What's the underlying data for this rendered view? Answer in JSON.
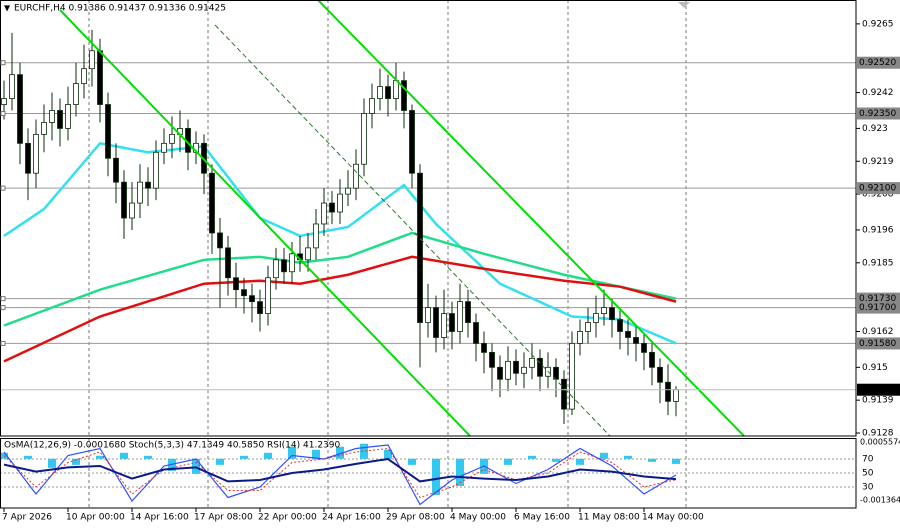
{
  "chart_data": [
    {
      "type": "candlestick",
      "title": "EURCHF,H4  0.91386 0.91437 0.91336 0.91425",
      "up_color": "#ffffff",
      "down_color": "#000000",
      "wick_color": "#0b2b0b",
      "open": [
        0.9238,
        0.924,
        0.9248,
        0.9225,
        0.9215,
        0.9228,
        0.9232,
        0.9236,
        0.923,
        0.9238,
        0.9245,
        0.925,
        0.9256,
        0.9238,
        0.922,
        0.9212,
        0.92,
        0.9205,
        0.9212,
        0.921,
        0.9222,
        0.9225,
        0.9228,
        0.923,
        0.9222,
        0.9225,
        0.9215,
        0.9195,
        0.919,
        0.918,
        0.9176,
        0.9174,
        0.9172,
        0.9168,
        0.918,
        0.9186,
        0.9182,
        0.9188,
        0.9186,
        0.919,
        0.9198,
        0.9205,
        0.9202,
        0.9208,
        0.921,
        0.9218,
        0.9235,
        0.924,
        0.9244,
        0.924,
        0.9246,
        0.9236,
        0.9215,
        0.9165,
        0.917,
        0.916,
        0.9168,
        0.9162,
        0.9172,
        0.9165,
        0.9158,
        0.9155,
        0.915,
        0.9146,
        0.9152,
        0.9148,
        0.915,
        0.9153,
        0.9147,
        0.915,
        0.9146,
        0.9136,
        0.9158,
        0.9162,
        0.9165,
        0.9168,
        0.917,
        0.9166,
        0.9162,
        0.916,
        0.9158,
        0.9155,
        0.915,
        0.9145,
        0.91386
      ],
      "high": [
        0.9246,
        0.9262,
        0.9252,
        0.923,
        0.9233,
        0.9238,
        0.9242,
        0.924,
        0.9244,
        0.9252,
        0.9258,
        0.9263,
        0.926,
        0.9242,
        0.9225,
        0.9216,
        0.9212,
        0.9218,
        0.9217,
        0.9226,
        0.923,
        0.9234,
        0.9236,
        0.9233,
        0.9229,
        0.9228,
        0.9218,
        0.92,
        0.9194,
        0.9185,
        0.918,
        0.9178,
        0.9176,
        0.9184,
        0.919,
        0.919,
        0.9192,
        0.9194,
        0.9195,
        0.9203,
        0.921,
        0.9209,
        0.9213,
        0.9216,
        0.9223,
        0.924,
        0.9245,
        0.925,
        0.9248,
        0.9252,
        0.9249,
        0.9238,
        0.9218,
        0.9178,
        0.9174,
        0.9176,
        0.9172,
        0.9178,
        0.9176,
        0.9168,
        0.9162,
        0.9158,
        0.9154,
        0.9157,
        0.9156,
        0.9155,
        0.9158,
        0.9156,
        0.9155,
        0.9153,
        0.9149,
        0.9162,
        0.9166,
        0.917,
        0.9174,
        0.9176,
        0.9173,
        0.9169,
        0.9166,
        0.9164,
        0.9161,
        0.9158,
        0.9153,
        0.9151,
        0.91437
      ],
      "low": [
        0.9233,
        0.9236,
        0.9218,
        0.9206,
        0.921,
        0.9222,
        0.9226,
        0.9224,
        0.9226,
        0.9234,
        0.924,
        0.9244,
        0.9232,
        0.9214,
        0.9205,
        0.9193,
        0.9196,
        0.92,
        0.9204,
        0.9206,
        0.9218,
        0.922,
        0.9222,
        0.9216,
        0.9218,
        0.9208,
        0.9188,
        0.917,
        0.9174,
        0.917,
        0.9168,
        0.9165,
        0.9162,
        0.9164,
        0.9176,
        0.9178,
        0.9178,
        0.9182,
        0.9182,
        0.9186,
        0.9194,
        0.9198,
        0.9198,
        0.9204,
        0.9206,
        0.9214,
        0.923,
        0.9236,
        0.9234,
        0.9236,
        0.923,
        0.921,
        0.915,
        0.916,
        0.9155,
        0.9156,
        0.9156,
        0.9158,
        0.916,
        0.9152,
        0.9148,
        0.9142,
        0.914,
        0.9142,
        0.9144,
        0.9143,
        0.9146,
        0.9142,
        0.9143,
        0.914,
        0.9131,
        0.9134,
        0.9154,
        0.9158,
        0.916,
        0.9164,
        0.916,
        0.9156,
        0.9154,
        0.9152,
        0.9149,
        0.9144,
        0.9138,
        0.9134,
        0.91336
      ],
      "close": [
        0.924,
        0.9248,
        0.9225,
        0.9215,
        0.9228,
        0.9232,
        0.9236,
        0.923,
        0.9238,
        0.9245,
        0.925,
        0.9256,
        0.9238,
        0.922,
        0.9212,
        0.92,
        0.9205,
        0.9212,
        0.921,
        0.9222,
        0.9225,
        0.9228,
        0.923,
        0.9222,
        0.9225,
        0.9215,
        0.9195,
        0.919,
        0.918,
        0.9176,
        0.9174,
        0.9172,
        0.9168,
        0.918,
        0.9186,
        0.9182,
        0.9188,
        0.9186,
        0.919,
        0.9198,
        0.9205,
        0.9202,
        0.9208,
        0.921,
        0.9218,
        0.9235,
        0.924,
        0.9244,
        0.924,
        0.9246,
        0.9236,
        0.9215,
        0.9165,
        0.917,
        0.916,
        0.9168,
        0.9162,
        0.9172,
        0.9165,
        0.9158,
        0.9155,
        0.915,
        0.9146,
        0.9152,
        0.9148,
        0.915,
        0.9153,
        0.9147,
        0.915,
        0.9146,
        0.9136,
        0.9158,
        0.9162,
        0.9165,
        0.9168,
        0.917,
        0.9166,
        0.9162,
        0.916,
        0.9158,
        0.9155,
        0.915,
        0.9145,
        0.91386,
        0.91425
      ],
      "moving_averages": [
        {
          "color": "#33e0f0",
          "x": [
            0,
            5,
            12,
            18,
            25,
            32,
            37,
            43,
            50,
            54,
            62,
            71,
            77,
            84
          ],
          "values": [
            0.9194,
            0.9203,
            0.9225,
            0.9222,
            0.9224,
            0.92,
            0.9194,
            0.9197,
            0.9211,
            0.9198,
            0.9178,
            0.9167,
            0.9166,
            0.9158
          ]
        },
        {
          "color": "#22dd88",
          "x": [
            0,
            12,
            25,
            32,
            37,
            43,
            51,
            60,
            70,
            77,
            84
          ],
          "values": [
            0.9164,
            0.9176,
            0.9186,
            0.9187,
            0.9185,
            0.9187,
            0.9195,
            0.9188,
            0.9181,
            0.9177,
            0.9173
          ]
        },
        {
          "color": "#e01010",
          "x": [
            0,
            12,
            25,
            32,
            37,
            43,
            51,
            60,
            70,
            77,
            84
          ],
          "values": [
            0.9152,
            0.9167,
            0.9178,
            0.9179,
            0.9178,
            0.9181,
            0.9187,
            0.9183,
            0.9179,
            0.9177,
            0.9172
          ]
        }
      ],
      "xlim": [
        -0.5,
        106
      ],
      "ylim": [
        0.9127,
        0.9273
      ],
      "yticks": [
        0.9265,
        0.9242,
        0.923,
        0.9219,
        0.9208,
        0.9196,
        0.9185,
        0.9162,
        0.915,
        0.9139,
        0.9128
      ],
      "xticks": [
        {
          "value": 0,
          "label": "7 Apr 2026"
        },
        {
          "value": 8,
          "label": "10 Apr 00:00"
        },
        {
          "value": 16,
          "label": "14 Apr 16:00"
        },
        {
          "value": 24,
          "label": "17 Apr 08:00"
        },
        {
          "value": 32,
          "label": "22 Apr 00:00"
        },
        {
          "value": 40,
          "label": "24 Apr 16:00"
        },
        {
          "value": 48,
          "label": "29 Apr 08:00"
        },
        {
          "value": 56,
          "label": "4 May 00:00"
        },
        {
          "value": 64,
          "label": "6 May 16:00"
        },
        {
          "value": 72,
          "label": "11 May 08:00"
        },
        {
          "value": 80,
          "label": "14 May 00:00"
        }
      ],
      "xgrid": [
        10.625,
        25.5,
        40.5,
        55.5,
        70.5,
        85.25
      ],
      "levels": [
        {
          "value": 0.9252,
          "label": "0.92520"
        },
        {
          "value": 0.9235,
          "label": "0.92350"
        },
        {
          "value": 0.921,
          "label": "0.92100"
        },
        {
          "value": 0.9173,
          "label": "0.91730"
        },
        {
          "value": 0.917,
          "label": "0.91700"
        },
        {
          "value": 0.9158,
          "label": "0.91580"
        }
      ],
      "current": {
        "value": 0.91425,
        "label": "0.91425"
      }
    },
    {
      "type": "oscillator",
      "title": "OsMA(12,26,9) -0.0001680 Stoch(5,3,3) 47.1349 40.5850 RSI(14) 41.2390",
      "xlim": [
        -0.5,
        106
      ],
      "ylim": [
        -0.0013645,
        0.0005574
      ],
      "yticks": [
        0.0005574,
        -0.0013645
      ],
      "y2lim": [
        0,
        100
      ],
      "y2ticks": [
        70,
        50,
        30
      ],
      "series": [
        {
          "type": "bar",
          "color": "#33c8f0",
          "x": [
            0,
            3,
            6,
            9,
            12,
            15,
            18,
            21,
            24,
            27,
            30,
            33,
            36,
            39,
            42,
            45,
            48,
            51,
            54,
            57,
            60,
            63,
            66,
            69,
            72,
            75,
            78,
            81,
            84
          ],
          "values": [
            0.0002,
            0.0001,
            -0.0003,
            -0.0002,
            0.0001,
            0.0002,
            0.0001,
            -0.0004,
            -0.0005,
            -0.0002,
            0.0001,
            0.0002,
            0.0004,
            0.0003,
            0.0004,
            0.0005,
            0.0003,
            -0.0002,
            -0.0012,
            -0.0009,
            -0.0005,
            -0.0002,
            0.0001,
            -0.0001,
            -0.0002,
            0.0002,
            0.0001,
            -0.0001,
            -0.000168
          ]
        },
        {
          "type": "line",
          "axis": "y2",
          "color": "#3050ff",
          "x": [
            0,
            4,
            8,
            12,
            16,
            20,
            24,
            28,
            32,
            36,
            40,
            44,
            48,
            52,
            56,
            60,
            64,
            68,
            72,
            76,
            80,
            84
          ],
          "values": [
            80,
            20,
            75,
            85,
            10,
            60,
            70,
            15,
            30,
            75,
            70,
            85,
            90,
            5,
            40,
            60,
            35,
            55,
            85,
            60,
            20,
            47.1349
          ]
        },
        {
          "type": "dotted",
          "axis": "y2",
          "color": "#e03030",
          "x": [
            0,
            4,
            8,
            12,
            16,
            20,
            24,
            28,
            32,
            36,
            40,
            44,
            48,
            52,
            56,
            60,
            64,
            68,
            72,
            76,
            80,
            84
          ],
          "values": [
            75,
            30,
            65,
            80,
            20,
            55,
            65,
            25,
            25,
            65,
            70,
            80,
            85,
            15,
            30,
            55,
            40,
            50,
            80,
            65,
            30,
            40.585
          ]
        },
        {
          "type": "line",
          "axis": "y2",
          "color": "#0a1a8a",
          "x": [
            0,
            4,
            8,
            12,
            16,
            20,
            24,
            28,
            32,
            36,
            40,
            44,
            48,
            52,
            56,
            60,
            64,
            68,
            72,
            76,
            80,
            84
          ],
          "values": [
            62,
            52,
            58,
            60,
            42,
            55,
            58,
            38,
            40,
            50,
            55,
            63,
            70,
            38,
            45,
            42,
            40,
            45,
            55,
            52,
            45,
            41.239
          ]
        }
      ]
    }
  ]
}
